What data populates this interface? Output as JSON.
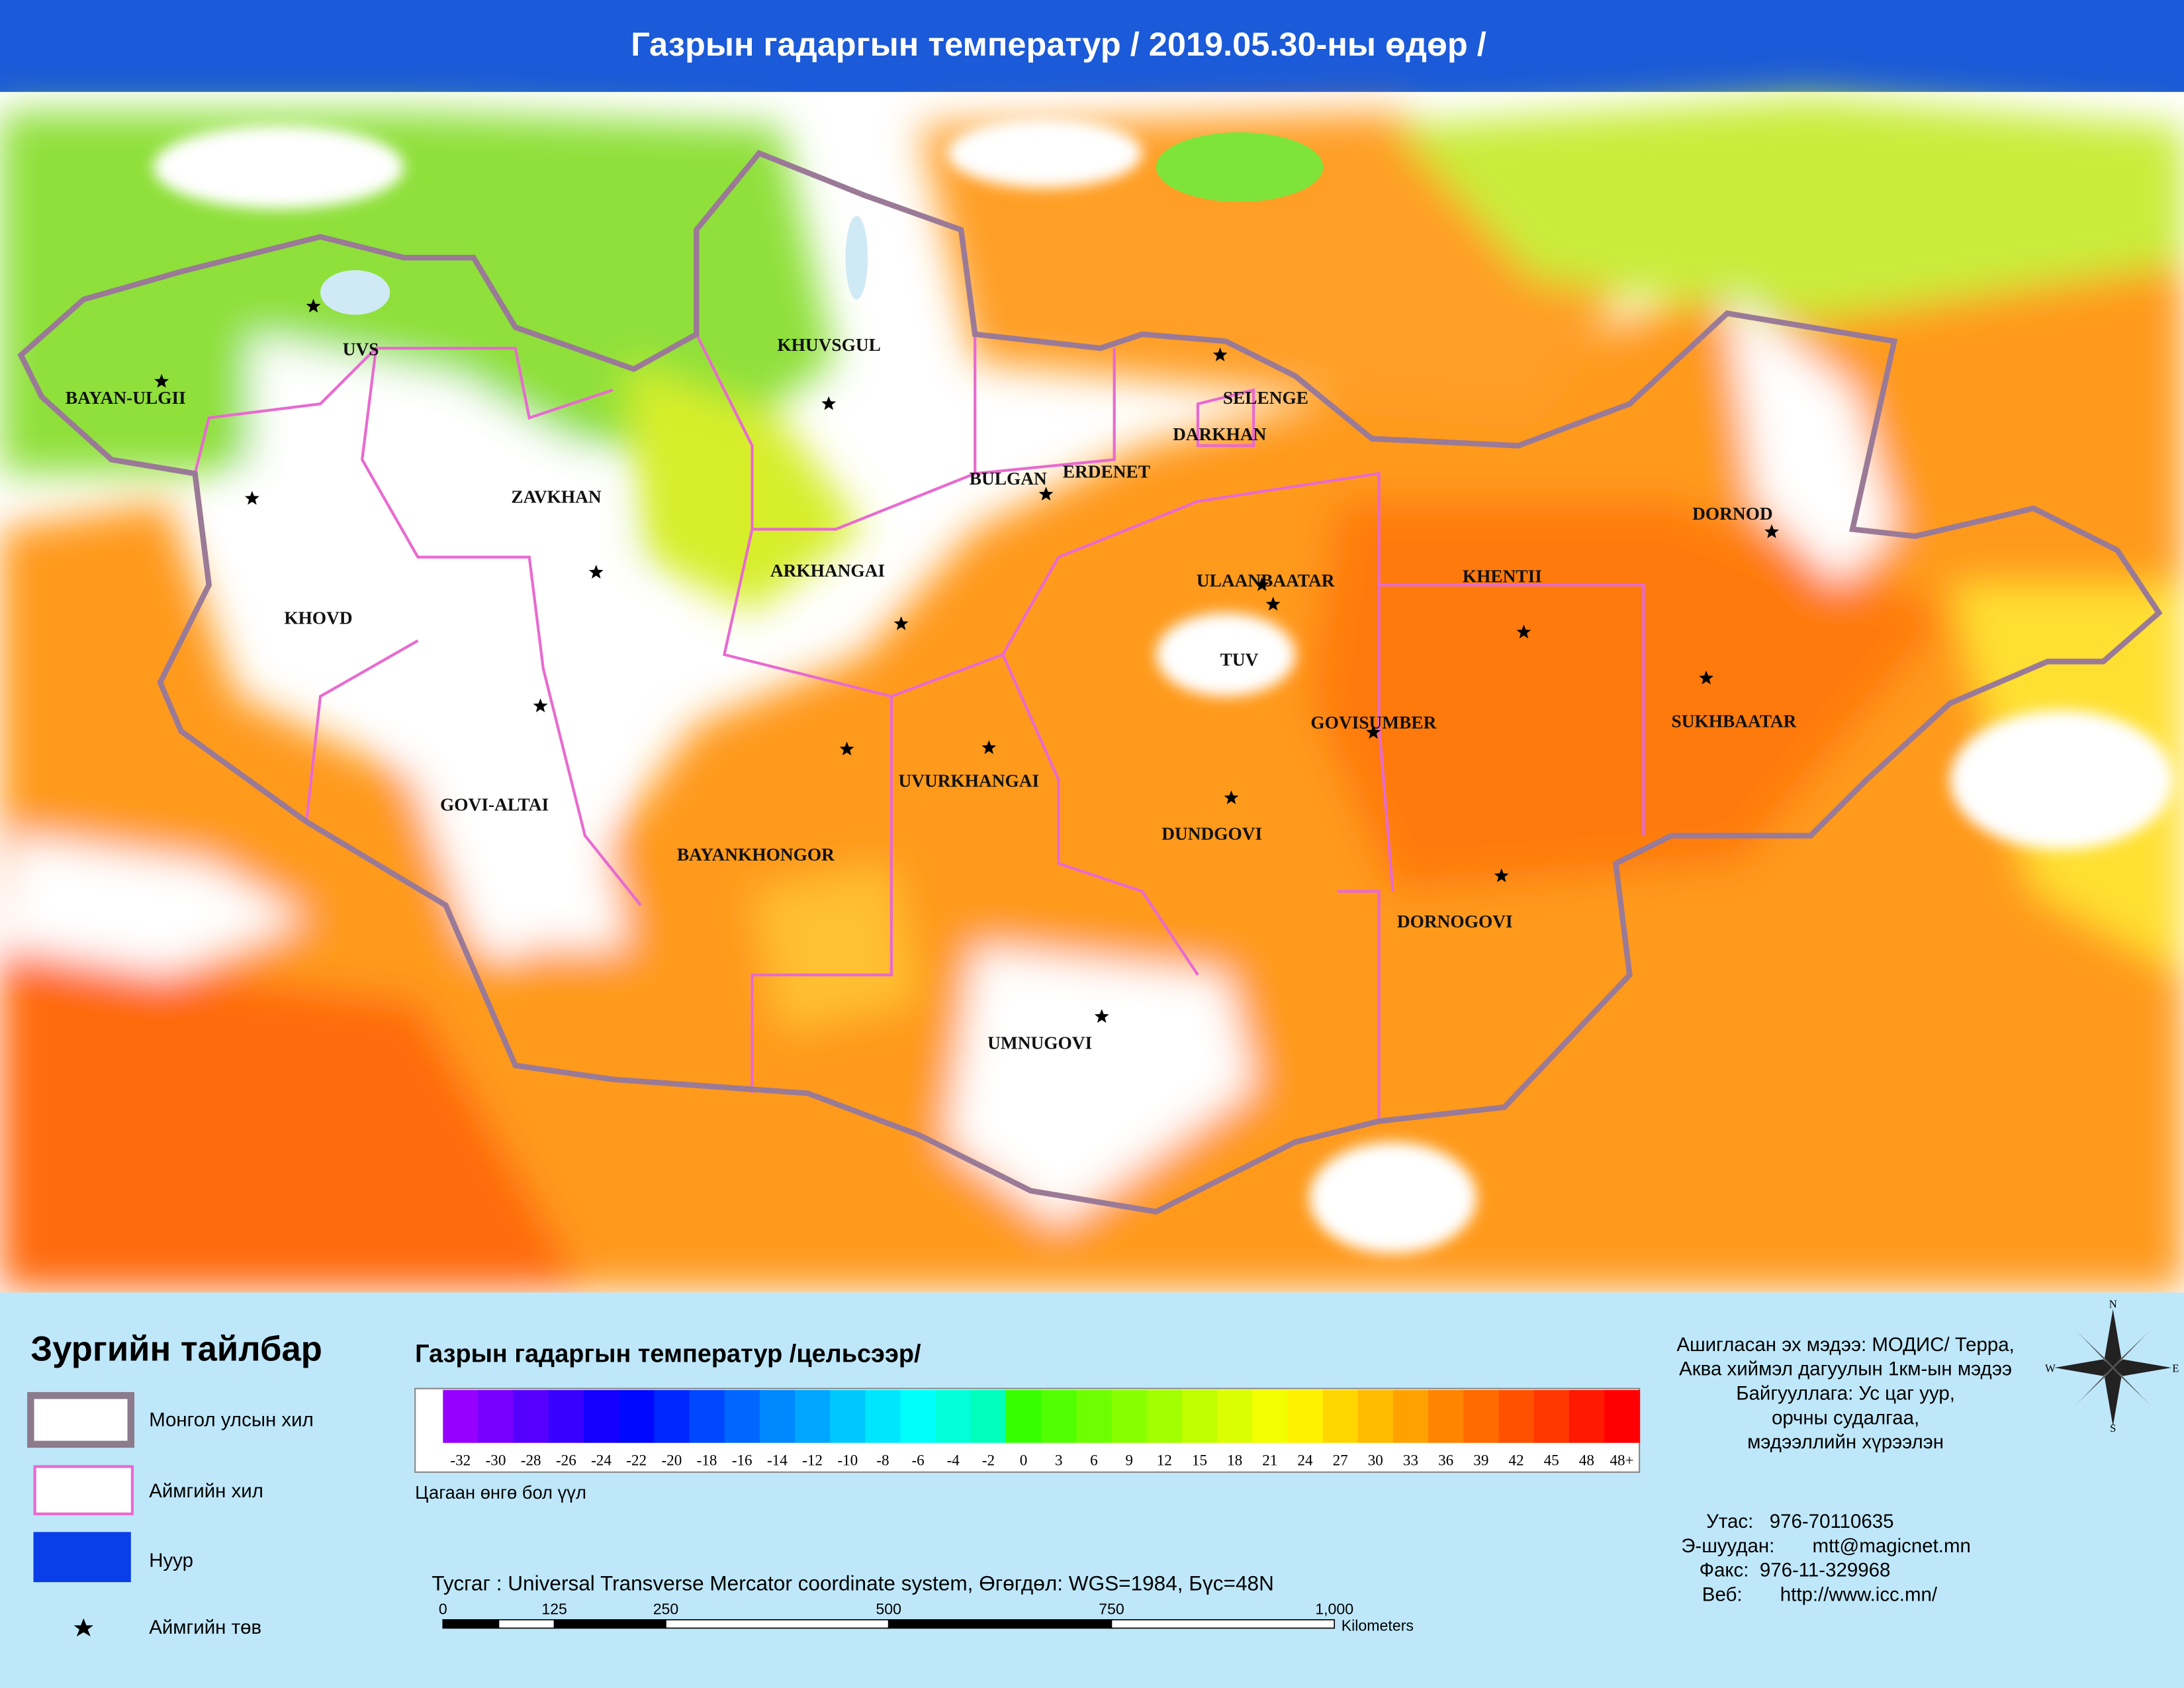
{
  "header": {
    "title": "Газрын гадаргын температур / 2019.05.30-ны өдөр /"
  },
  "map": {
    "labels": [
      "BAYAN-ULGII",
      "UVS",
      "KHUVSGUL",
      "SELENGE",
      "DARKHAN",
      "ZAVKHAN",
      "BULGAN",
      "ERDENET",
      "DORNOD",
      "ARKHANGAI",
      "ULAANBAATAR",
      "KHENTII",
      "KHOVD",
      "TUV",
      "GOVISUMBER",
      "SUKHBAATAR",
      "UVURKHANGAI",
      "GOVI-ALTAI",
      "DUNDGOVI",
      "BAYANKHONGOR",
      "DORNOGOVI",
      "UMNUGOVI"
    ]
  },
  "legend": {
    "heading": "Зургийн тайлбар",
    "items": [
      "Монгол улсын хил",
      "Аймгийн хил",
      "Нуур",
      "Аймгийн төв"
    ]
  },
  "colorbar": {
    "title": "Газрын гадаргын температур /цельсээр/",
    "ticks": [
      "-32",
      "-30",
      "-28",
      "-26",
      "-24",
      "-22",
      "-20",
      "-18",
      "-16",
      "-14",
      "-12",
      "-10",
      "-8",
      "-6",
      "-4",
      "-2",
      "0",
      "3",
      "6",
      "9",
      "12",
      "15",
      "18",
      "21",
      "24",
      "27",
      "30",
      "33",
      "36",
      "39",
      "42",
      "45",
      "48",
      "48+"
    ],
    "note": "Цагаан өнгө бол үүл"
  },
  "projection": "Тусгаг : Universal Transverse Mercator coordinate system, Өгөгдөл: WGS=1984, Бүс=48N",
  "scale": {
    "ticks": [
      "0",
      "125",
      "250",
      "500",
      "750",
      "1,000"
    ],
    "unit": "Kilometers"
  },
  "info": [
    "Ашигласан эх мэдээ: МОДИС/ Терра,",
    "Аква хиймэл дагуулын 1км-ын мэдээ",
    "Байгууллага: Ус цаг уур,",
    "орчны судалгаа,",
    "мэдээллийн хүрээлэн"
  ],
  "contacts": [
    "Утас:   976-70110635",
    "Э-шуудан:       mtt@magicnet.mn",
    "Факс:  976-11-329968",
    "Веб:       http://www.icc.mn/"
  ],
  "compass": [
    "N",
    "E",
    "S",
    "W"
  ]
}
